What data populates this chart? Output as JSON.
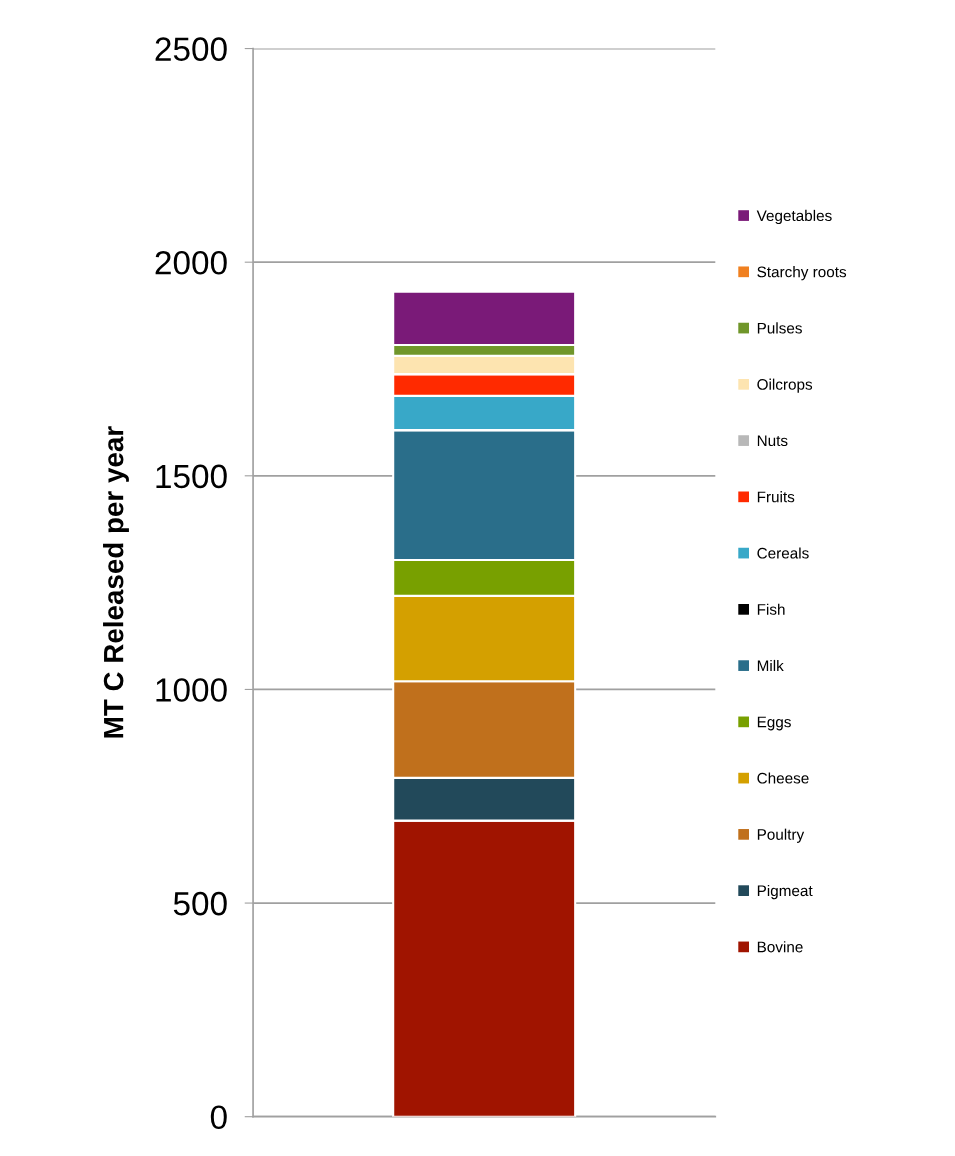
{
  "chart_data": {
    "type": "bar",
    "stacked": true,
    "ylabel": "MT C Released per year",
    "categories": [
      null
    ],
    "series": [
      {
        "name": "Bovine",
        "color": "#a01400",
        "values": [
          693
        ]
      },
      {
        "name": "Pigmeat",
        "color": "#22495a",
        "values": [
          100
        ]
      },
      {
        "name": "Poultry",
        "color": "#c0701c",
        "values": [
          226
        ]
      },
      {
        "name": "Cheese",
        "color": "#d4a000",
        "values": [
          200
        ]
      },
      {
        "name": "Eggs",
        "color": "#78a000",
        "values": [
          84
        ]
      },
      {
        "name": "Milk",
        "color": "#2a6e8a",
        "values": [
          304
        ]
      },
      {
        "name": "Fish",
        "color": "#000000",
        "values": [
          0
        ]
      },
      {
        "name": "Cereals",
        "color": "#38a8c8",
        "values": [
          80
        ]
      },
      {
        "name": "Fruits",
        "color": "#ff2a00",
        "values": [
          51
        ]
      },
      {
        "name": "Nuts",
        "color": "#b8b8b8",
        "values": [
          0
        ]
      },
      {
        "name": "Oilcrops",
        "color": "#fde4b0",
        "values": [
          43
        ]
      },
      {
        "name": "Pulses",
        "color": "#70962a",
        "values": [
          25
        ]
      },
      {
        "name": "Starchy roots",
        "color": "#f08020",
        "values": [
          0
        ]
      },
      {
        "name": "Vegetables",
        "color": "#7a1a78",
        "values": [
          125
        ]
      }
    ],
    "ylim": [
      0,
      2500
    ],
    "yticks": [
      0,
      500,
      1000,
      1500,
      2000,
      2500
    ],
    "grid": "y",
    "legend": "right",
    "tick_labels": "y"
  }
}
